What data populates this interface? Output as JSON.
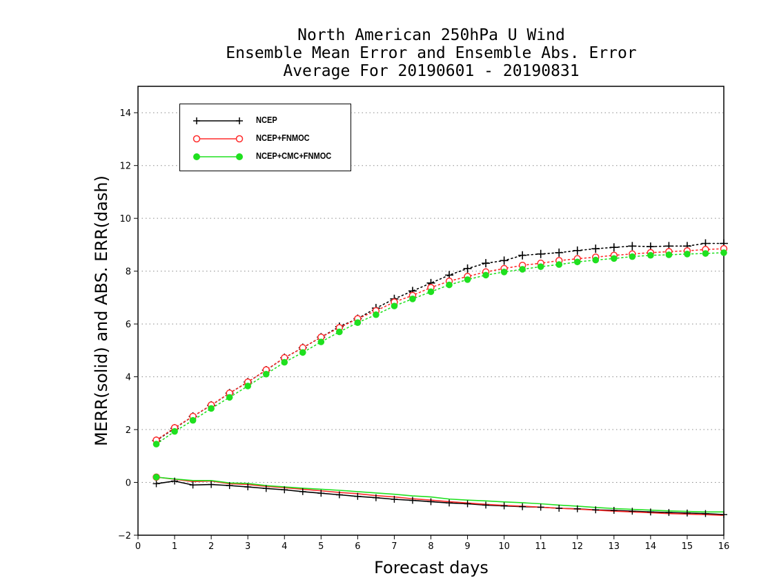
{
  "chart_data": {
    "type": "line",
    "title": [
      "North American 250hPa U Wind",
      "Ensemble Mean Error and Ensemble Abs. Error",
      "Average For 20190601 - 20190831"
    ],
    "xlabel": "Forecast days",
    "ylabel": "MERR(solid) and ABS. ERR(dash)",
    "xlim": [
      0,
      16
    ],
    "ylim": [
      -2,
      15
    ],
    "xticks": [
      0,
      1,
      2,
      3,
      4,
      5,
      6,
      7,
      8,
      9,
      10,
      11,
      12,
      13,
      14,
      15,
      16
    ],
    "yticks": [
      -2,
      0,
      2,
      4,
      6,
      8,
      10,
      12,
      14
    ],
    "grid": "horizontal dotted",
    "legend_position": "top-left",
    "x": [
      0.5,
      1,
      1.5,
      2,
      2.5,
      3,
      3.5,
      4,
      4.5,
      5,
      5.5,
      6,
      6.5,
      7,
      7.5,
      8,
      8.5,
      9,
      9.5,
      10,
      10.5,
      11,
      11.5,
      12,
      12.5,
      13,
      13.5,
      14,
      14.5,
      15,
      15.5,
      16
    ],
    "series": [
      {
        "name": "NCEP",
        "color": "#000000",
        "marker": "plus",
        "abs_err": [
          1.58,
          2.05,
          2.5,
          2.92,
          3.38,
          3.8,
          4.25,
          4.72,
          5.1,
          5.5,
          5.9,
          6.2,
          6.6,
          6.95,
          7.25,
          7.55,
          7.85,
          8.1,
          8.3,
          8.4,
          8.6,
          8.65,
          8.7,
          8.78,
          8.85,
          8.9,
          8.95,
          8.93,
          8.95,
          8.95,
          9.05,
          9.05
        ],
        "mean_err": [
          -0.05,
          0.05,
          -0.1,
          -0.08,
          -0.12,
          -0.17,
          -0.23,
          -0.28,
          -0.35,
          -0.41,
          -0.47,
          -0.53,
          -0.58,
          -0.64,
          -0.68,
          -0.73,
          -0.78,
          -0.81,
          -0.86,
          -0.89,
          -0.92,
          -0.94,
          -0.98,
          -1.0,
          -1.04,
          -1.06,
          -1.09,
          -1.12,
          -1.14,
          -1.16,
          -1.18,
          -1.22
        ]
      },
      {
        "name": "NCEP+FNMOC",
        "color": "#ff2a2a",
        "marker": "open-circle",
        "abs_err": [
          1.6,
          2.07,
          2.5,
          2.93,
          3.38,
          3.8,
          4.26,
          4.72,
          5.1,
          5.5,
          5.86,
          6.2,
          6.5,
          6.83,
          7.08,
          7.38,
          7.62,
          7.8,
          7.97,
          8.1,
          8.22,
          8.3,
          8.4,
          8.47,
          8.53,
          8.6,
          8.65,
          8.7,
          8.74,
          8.77,
          8.82,
          8.85
        ],
        "mean_err": [
          0.2,
          0.12,
          0.03,
          0.05,
          -0.05,
          -0.08,
          -0.15,
          -0.2,
          -0.26,
          -0.32,
          -0.38,
          -0.43,
          -0.5,
          -0.55,
          -0.62,
          -0.67,
          -0.73,
          -0.78,
          -0.83,
          -0.87,
          -0.9,
          -0.94,
          -0.98,
          -1.01,
          -1.05,
          -1.09,
          -1.12,
          -1.15,
          -1.18,
          -1.2,
          -1.22,
          -1.25
        ]
      },
      {
        "name": "NCEP+CMC+FNMOC",
        "color": "#1fe01f",
        "marker": "filled-circle",
        "abs_err": [
          1.45,
          1.93,
          2.35,
          2.8,
          3.22,
          3.65,
          4.1,
          4.55,
          4.92,
          5.32,
          5.7,
          6.05,
          6.35,
          6.68,
          6.95,
          7.22,
          7.48,
          7.68,
          7.85,
          7.97,
          8.07,
          8.17,
          8.25,
          8.35,
          8.42,
          8.48,
          8.55,
          8.6,
          8.62,
          8.65,
          8.67,
          8.7
        ],
        "mean_err": [
          0.2,
          0.13,
          0.07,
          0.07,
          -0.02,
          -0.04,
          -0.12,
          -0.17,
          -0.22,
          -0.26,
          -0.3,
          -0.35,
          -0.4,
          -0.45,
          -0.51,
          -0.55,
          -0.63,
          -0.67,
          -0.7,
          -0.74,
          -0.77,
          -0.81,
          -0.86,
          -0.9,
          -0.95,
          -0.99,
          -1.02,
          -1.05,
          -1.08,
          -1.1,
          -1.12,
          -1.12
        ]
      }
    ]
  }
}
